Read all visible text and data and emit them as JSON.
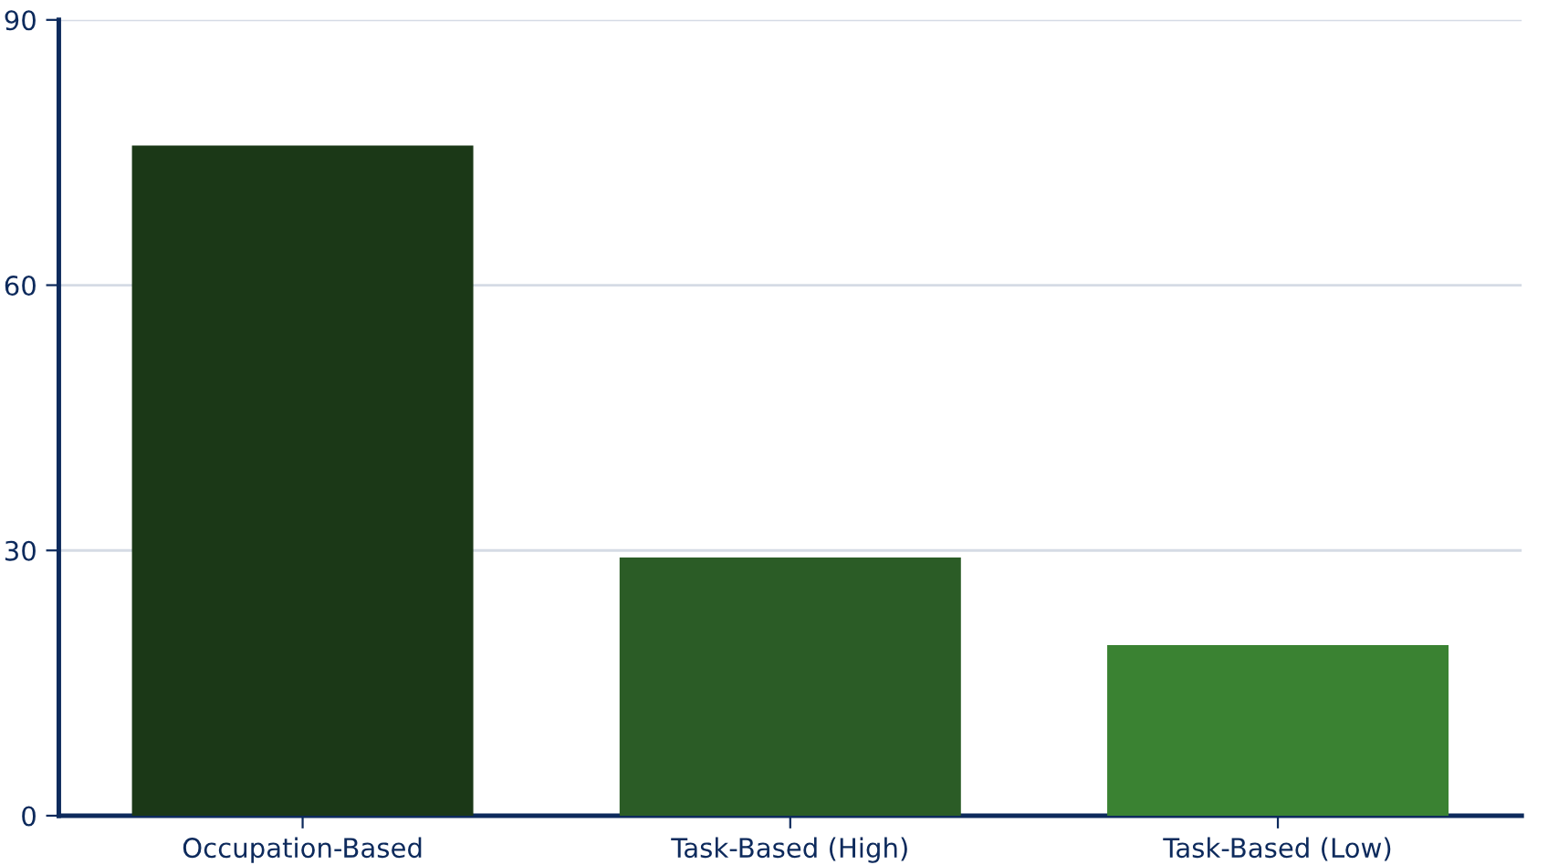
{
  "chart_data": {
    "type": "bar",
    "categories": [
      "Occupation-Based",
      "Task-Based (High)",
      "Task-Based (Low)"
    ],
    "values": [
      75.8,
      29.2,
      19.3
    ],
    "colors": [
      "#1b3817",
      "#2b5c26",
      "#3a8232"
    ],
    "ylim": [
      0,
      90
    ],
    "yticks": [
      0,
      30,
      60,
      90
    ],
    "grid": "y",
    "legend": false
  }
}
